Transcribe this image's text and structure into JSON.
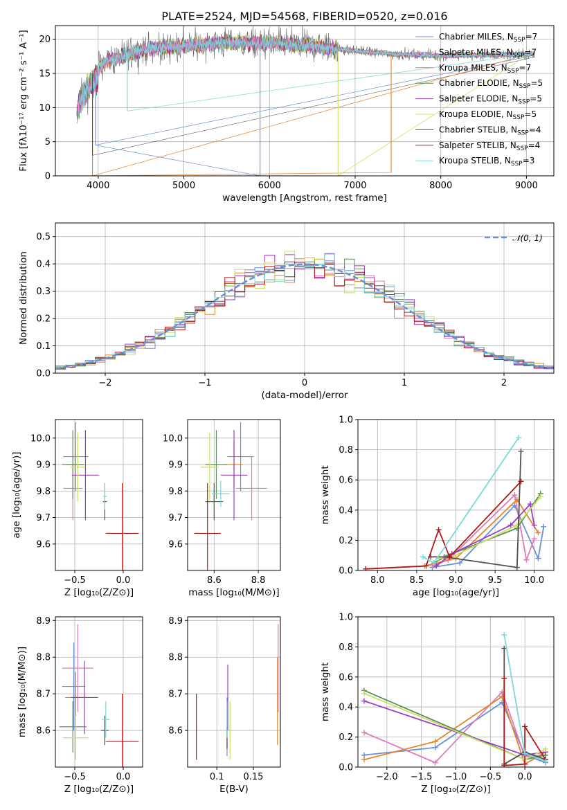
{
  "figure_title": "PLATE=2524, MJD=54568, FIBERID=0520, z=0.016",
  "colors": {
    "Chabrier MILES": "#6a8fd6",
    "Salpeter MILES": "#e07ab8",
    "Kroupa MILES": "#e5832b",
    "Chabrier ELODIE": "#5b8f5b",
    "Salpeter ELODIE": "#9b3dc2",
    "Kroupa ELODIE": "#c8e05a",
    "Chabrier STELIB": "#505050",
    "Salpeter STELIB": "#b01818",
    "Kroupa STELIB": "#7ad8d8"
  },
  "chart_data": [
    {
      "id": "spectrum",
      "type": "line",
      "title": "PLATE=2524, MJD=54568, FIBERID=0520, z=0.016",
      "xlabel": "wavelength [Angstrom, rest frame]",
      "ylabel": "Flux [fλ10⁻¹⁷ erg cm⁻² s⁻¹ A⁻¹]",
      "xlim": [
        3500,
        9320
      ],
      "ylim": [
        0,
        22
      ],
      "xticks": [
        4000,
        5000,
        6000,
        7000,
        8000,
        9000
      ],
      "yticks": [
        0,
        5,
        10,
        15,
        20
      ],
      "legend_position": "top-right",
      "legend": [
        {
          "label": "Chabrier MILES, N",
          "sub": "SSP",
          "tail": "=7"
        },
        {
          "label": "Salpeter MILES, N",
          "sub": "SSP",
          "tail": "=7"
        },
        {
          "label": "Kroupa MILES, N",
          "sub": "SSP",
          "tail": "=7"
        },
        {
          "label": "Chabrier ELODIE, N",
          "sub": "SSP",
          "tail": "=5"
        },
        {
          "label": "Salpeter ELODIE, N",
          "sub": "SSP",
          "tail": "=5"
        },
        {
          "label": "Kroupa ELODIE, N",
          "sub": "SSP",
          "tail": "=5"
        },
        {
          "label": "Chabrier STELIB, N",
          "sub": "SSP",
          "tail": "=4"
        },
        {
          "label": "Salpeter STELIB, N",
          "sub": "SSP",
          "tail": "=4"
        },
        {
          "label": "Kroupa STELIB, N",
          "sub": "SSP",
          "tail": "=3"
        }
      ],
      "continuum": {
        "x": [
          3750,
          3800,
          3900,
          4000,
          4100,
          4300,
          4500,
          5000,
          5500,
          6000,
          6500,
          7000,
          7500,
          8000,
          8500,
          9000,
          9100
        ],
        "y": [
          10.5,
          13.0,
          14.5,
          16.0,
          16.8,
          17.5,
          18.5,
          19.0,
          19.5,
          19.4,
          19.0,
          18.3,
          17.8,
          17.6,
          17.7,
          17.8,
          17.8
        ]
      },
      "dips": [
        {
          "x": 3933,
          "y": 0.0,
          "series": "Kroupa MILES"
        },
        {
          "x": 3933,
          "y": 3.0,
          "series": "Chabrier STELIB"
        },
        {
          "x": 3968,
          "y": 4.5,
          "series": "Chabrier MILES"
        },
        {
          "x": 4340,
          "y": 9.5,
          "series": "Kroupa STELIB"
        },
        {
          "x": 5890,
          "y": 0.0,
          "series": "Chabrier MILES"
        },
        {
          "x": 6800,
          "y": 0.0,
          "series": "Kroupa ELODIE"
        },
        {
          "x": 7420,
          "y": 0.5,
          "series": "Kroupa MILES"
        }
      ]
    },
    {
      "id": "residuals",
      "type": "histogram",
      "xlabel": "(data-model)/error",
      "ylabel": "Normed distribution",
      "xlim": [
        -2.5,
        2.5
      ],
      "ylim": [
        0,
        0.55
      ],
      "xticks": [
        -2,
        -1,
        0,
        1,
        2
      ],
      "yticks": [
        0.0,
        0.1,
        0.2,
        0.3,
        0.4,
        0.5
      ],
      "bin_width": 0.1,
      "legend": [
        {
          "label": "𝒩(0, 1)",
          "style": "dashed"
        }
      ],
      "gaussian": {
        "mean": 0,
        "sigma": 1,
        "color": "#6a8fd6"
      }
    },
    {
      "id": "age_vs_Z",
      "type": "errorbar",
      "xlabel": "Z [log₁₀(Z/Z⊙)]",
      "ylabel": "age  [log₁₀(age/yr)]",
      "xlim": [
        -0.7,
        0.2
      ],
      "ylim": [
        9.5,
        10.07
      ],
      "xticks": [
        -0.5,
        0.0
      ],
      "yticks": [
        9.6,
        9.7,
        9.8,
        9.9,
        10.0
      ],
      "points": [
        {
          "series": "Chabrier MILES",
          "x": -0.49,
          "y": 9.93,
          "xerr": 0.13,
          "yerr": 0.13
        },
        {
          "series": "Salpeter MILES",
          "x": -0.52,
          "y": 9.81,
          "xerr": 0.1,
          "yerr": 0.12
        },
        {
          "series": "Kroupa MILES",
          "x": -0.49,
          "y": 9.9,
          "xerr": 0.09,
          "yerr": 0.09
        },
        {
          "series": "Chabrier ELODIE",
          "x": -0.52,
          "y": 9.9,
          "xerr": 0.11,
          "yerr": 0.13
        },
        {
          "series": "Salpeter ELODIE",
          "x": -0.39,
          "y": 9.86,
          "xerr": 0.14,
          "yerr": 0.17
        },
        {
          "series": "Kroupa ELODIE",
          "x": -0.47,
          "y": 9.89,
          "xerr": 0.07,
          "yerr": 0.13
        },
        {
          "series": "Chabrier STELIB",
          "x": -0.19,
          "y": 9.76,
          "xerr": 0.02,
          "yerr": 0.07
        },
        {
          "series": "Salpeter STELIB",
          "x": -0.01,
          "y": 9.64,
          "xerr": 0.17,
          "yerr": 0.19
        },
        {
          "series": "Kroupa STELIB",
          "x": -0.19,
          "y": 9.78,
          "xerr": 0.02,
          "yerr": 0.05
        }
      ]
    },
    {
      "id": "age_vs_mass",
      "type": "errorbar",
      "xlabel": "mass [log₁₀(M/M⊙)]",
      "ylabel": "",
      "xlim": [
        8.48,
        8.9
      ],
      "ylim": [
        9.5,
        10.07
      ],
      "xticks": [
        8.6,
        8.8
      ],
      "yticks": [
        9.6,
        9.7,
        9.8,
        9.9,
        10.0
      ],
      "points": [
        {
          "series": "Chabrier MILES",
          "x": 8.72,
          "y": 9.93,
          "xerr": 0.06,
          "yerr": 0.13
        },
        {
          "series": "Salpeter MILES",
          "x": 8.77,
          "y": 9.81,
          "xerr": 0.07,
          "yerr": 0.12
        },
        {
          "series": "Kroupa MILES",
          "x": 8.69,
          "y": 9.9,
          "xerr": 0.04,
          "yerr": 0.09
        },
        {
          "series": "Chabrier ELODIE",
          "x": 8.61,
          "y": 9.9,
          "xerr": 0.05,
          "yerr": 0.13
        },
        {
          "series": "Salpeter ELODIE",
          "x": 8.69,
          "y": 9.86,
          "xerr": 0.06,
          "yerr": 0.17
        },
        {
          "series": "Kroupa ELODIE",
          "x": 8.58,
          "y": 9.89,
          "xerr": 0.04,
          "yerr": 0.13
        },
        {
          "series": "Chabrier STELIB",
          "x": 8.6,
          "y": 9.76,
          "xerr": 0.04,
          "yerr": 0.07
        },
        {
          "series": "Salpeter STELIB",
          "x": 8.57,
          "y": 9.64,
          "xerr": 0.06,
          "yerr": 0.19
        },
        {
          "series": "Kroupa STELIB",
          "x": 8.63,
          "y": 9.79,
          "xerr": 0.04,
          "yerr": 0.05
        }
      ]
    },
    {
      "id": "weight_vs_age",
      "type": "line",
      "xlabel": "age  [log₁₀(age/yr)]",
      "ylabel": "mass weight",
      "xlim": [
        7.75,
        10.25
      ],
      "ylim": [
        0.0,
        1.0
      ],
      "xticks": [
        8.0,
        8.5,
        9.0,
        9.5,
        10.0
      ],
      "yticks": [
        0.0,
        0.2,
        0.4,
        0.6,
        0.8,
        1.0
      ],
      "series": [
        {
          "name": "Chabrier MILES",
          "x": [
            8.7,
            9.05,
            9.75,
            10.05,
            10.12
          ],
          "y": [
            0.02,
            0.05,
            0.43,
            0.08,
            0.29
          ]
        },
        {
          "name": "Salpeter MILES",
          "x": [
            8.7,
            8.9,
            9.75,
            9.9,
            10.0
          ],
          "y": [
            0.03,
            0.07,
            0.5,
            0.07,
            0.21
          ]
        },
        {
          "name": "Kroupa MILES",
          "x": [
            7.85,
            8.6,
            9.0,
            9.78,
            10.05
          ],
          "y": [
            0.01,
            0.03,
            0.08,
            0.47,
            0.25
          ]
        },
        {
          "name": "Chabrier ELODIE",
          "x": [
            8.72,
            8.9,
            9.78,
            10.08
          ],
          "y": [
            0.05,
            0.1,
            0.28,
            0.51
          ]
        },
        {
          "name": "Salpeter ELODIE",
          "x": [
            8.75,
            8.95,
            9.7,
            9.95,
            10.0
          ],
          "y": [
            0.03,
            0.11,
            0.3,
            0.44,
            0.3
          ]
        },
        {
          "name": "Kroupa ELODIE",
          "x": [
            8.78,
            8.95,
            9.78,
            10.08
          ],
          "y": [
            0.08,
            0.09,
            0.3,
            0.49
          ]
        },
        {
          "name": "Chabrier STELIB",
          "x": [
            8.68,
            8.85,
            9.78,
            9.83
          ],
          "y": [
            0.09,
            0.09,
            0.02,
            0.79
          ]
        },
        {
          "name": "Salpeter STELIB",
          "x": [
            7.85,
            8.62,
            8.78,
            8.92,
            9.83
          ],
          "y": [
            0.01,
            0.03,
            0.27,
            0.09,
            0.59
          ]
        },
        {
          "name": "Kroupa STELIB",
          "x": [
            8.58,
            8.72,
            9.8
          ],
          "y": [
            0.09,
            0.05,
            0.88
          ]
        }
      ]
    },
    {
      "id": "mass_vs_Z",
      "type": "errorbar",
      "xlabel": "Z [log₁₀(Z/Z⊙)]",
      "ylabel": "mass [log₁₀(M/M⊙)]",
      "xlim": [
        -0.7,
        0.2
      ],
      "ylim": [
        8.5,
        8.91
      ],
      "xticks": [
        -0.5,
        0.0
      ],
      "yticks": [
        8.6,
        8.7,
        8.8,
        8.9
      ],
      "points": [
        {
          "series": "Chabrier MILES",
          "x": -0.51,
          "y": 8.72,
          "xerr": 0.12,
          "yerr": 0.12
        },
        {
          "series": "Salpeter MILES",
          "x": -0.47,
          "y": 8.77,
          "xerr": 0.16,
          "yerr": 0.12
        },
        {
          "series": "Kroupa MILES",
          "x": -0.49,
          "y": 8.69,
          "xerr": 0.11,
          "yerr": 0.07
        },
        {
          "series": "Chabrier ELODIE",
          "x": -0.52,
          "y": 8.61,
          "xerr": 0.14,
          "yerr": 0.07
        },
        {
          "series": "Salpeter ELODIE",
          "x": -0.4,
          "y": 8.69,
          "xerr": 0.14,
          "yerr": 0.1
        },
        {
          "series": "Kroupa ELODIE",
          "x": -0.49,
          "y": 8.58,
          "xerr": 0.13,
          "yerr": 0.06
        },
        {
          "series": "Chabrier STELIB",
          "x": -0.19,
          "y": 8.6,
          "xerr": 0.04,
          "yerr": 0.04
        },
        {
          "series": "Salpeter STELIB",
          "x": -0.01,
          "y": 8.57,
          "xerr": 0.17,
          "yerr": 0.13
        },
        {
          "series": "Kroupa STELIB",
          "x": -0.18,
          "y": 8.63,
          "xerr": 0.04,
          "yerr": 0.05
        }
      ]
    },
    {
      "id": "mass_vs_ebv",
      "type": "errorbar",
      "xlabel": "E(B-V)",
      "ylabel": "",
      "xlim": [
        0.06,
        0.187
      ],
      "ylim": [
        8.5,
        8.91
      ],
      "xticks": [
        0.1,
        0.15
      ],
      "yticks": [
        8.6,
        8.7,
        8.8,
        8.9
      ],
      "points": [
        {
          "series": "Chabrier MILES",
          "x": 0.114,
          "y": 8.61,
          "xerr": 0,
          "yerr": 0.08
        },
        {
          "series": "Salpeter MILES",
          "x": 0.184,
          "y": 8.77,
          "xerr": 0,
          "yerr": 0.12
        },
        {
          "series": "Kroupa MILES",
          "x": 0.183,
          "y": 8.68,
          "xerr": 0,
          "yerr": 0.12
        },
        {
          "series": "Chabrier ELODIE",
          "x": 0.114,
          "y": 8.58,
          "xerr": 0,
          "yerr": 0.03
        },
        {
          "series": "Salpeter ELODIE",
          "x": 0.115,
          "y": 8.69,
          "xerr": 0,
          "yerr": 0.09
        },
        {
          "series": "Kroupa ELODIE",
          "x": 0.118,
          "y": 8.6,
          "xerr": 0,
          "yerr": 0.08
        },
        {
          "series": "Chabrier STELIB",
          "x": 0.114,
          "y": 8.58,
          "xerr": 0,
          "yerr": 0.03
        },
        {
          "series": "Salpeter STELIB",
          "x": 0.072,
          "y": 8.61,
          "xerr": 0,
          "yerr": 0.09
        },
        {
          "series": "Kroupa STELIB",
          "x": 0.114,
          "y": 8.63,
          "xerr": 0,
          "yerr": 0.05
        }
      ]
    },
    {
      "id": "weight_vs_Z",
      "type": "line",
      "xlabel": "Z [log₁₀(Z/Z⊙)]",
      "ylabel": "mass weight",
      "xlim": [
        -2.42,
        0.42
      ],
      "ylim": [
        0.0,
        1.0
      ],
      "xticks": [
        -2.0,
        -1.5,
        -1.0,
        -0.5,
        0.0
      ],
      "yticks": [
        0.0,
        0.2,
        0.4,
        0.6,
        0.8,
        1.0
      ],
      "series": [
        {
          "name": "Chabrier MILES",
          "x": [
            -2.33,
            -1.3,
            -0.33,
            0.0,
            0.3
          ],
          "y": [
            0.08,
            0.13,
            0.43,
            0.08,
            0.03
          ]
        },
        {
          "name": "Salpeter MILES",
          "x": [
            -2.33,
            -1.3,
            -0.33,
            0.0,
            0.3
          ],
          "y": [
            0.23,
            0.03,
            0.5,
            0.07,
            0.08
          ]
        },
        {
          "name": "Kroupa MILES",
          "x": [
            -2.33,
            -1.3,
            -0.33,
            0.0,
            0.3
          ],
          "y": [
            0.05,
            0.17,
            0.47,
            0.02,
            0.1
          ]
        },
        {
          "name": "Chabrier ELODIE",
          "x": [
            -2.33,
            0.0,
            0.3
          ],
          "y": [
            0.51,
            0.05,
            0.08
          ]
        },
        {
          "name": "Salpeter ELODIE",
          "x": [
            -2.33,
            0.0,
            0.3
          ],
          "y": [
            0.44,
            0.08,
            0.1
          ]
        },
        {
          "name": "Kroupa ELODIE",
          "x": [
            -2.33,
            0.0,
            0.3
          ],
          "y": [
            0.49,
            0.05,
            0.12
          ]
        },
        {
          "name": "Chabrier STELIB",
          "x": [
            -0.3,
            -0.3,
            0.0,
            0.3
          ],
          "y": [
            0.79,
            0.02,
            0.1,
            0.05
          ]
        },
        {
          "name": "Salpeter STELIB",
          "x": [
            -0.3,
            -0.3,
            0.0,
            0.0,
            0.3
          ],
          "y": [
            0.59,
            0.01,
            0.02,
            0.27,
            0.05
          ]
        },
        {
          "name": "Kroupa STELIB",
          "x": [
            -0.3,
            0.0,
            0.3
          ],
          "y": [
            0.88,
            0.09,
            0.04
          ]
        }
      ]
    }
  ]
}
